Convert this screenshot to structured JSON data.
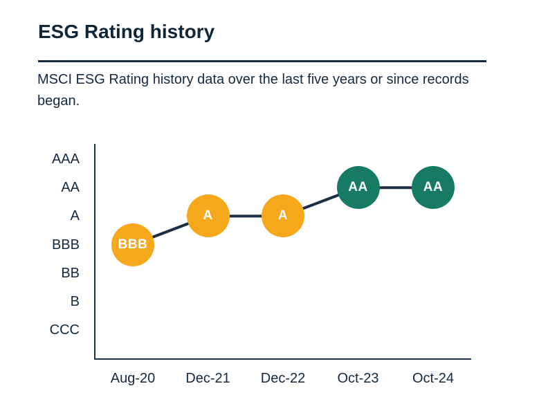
{
  "page": {
    "title": "ESG Rating history",
    "subtitle": "MSCI ESG Rating history data over the last five years or since records began."
  },
  "colors": {
    "navy_text": "#14293e",
    "title_navy": "#0f2638",
    "line_navy": "#1b2e44",
    "axis_navy": "#1c3146",
    "yellow": "#f5a81c",
    "teal": "#177a64",
    "marker_text": "#ffffff",
    "background": "#ffffff"
  },
  "chart_data": {
    "type": "line",
    "title": "ESG Rating history",
    "subtitle": "MSCI ESG Rating history data over the last five years or since records began.",
    "x_categories": [
      "Aug-20",
      "Dec-21",
      "Dec-22",
      "Oct-23",
      "Oct-24"
    ],
    "y_categories_top_to_bottom": [
      "AAA",
      "AA",
      "A",
      "BBB",
      "BB",
      "B",
      "CCC"
    ],
    "points": [
      {
        "x": "Aug-20",
        "rating": "BBB",
        "color_key": "yellow"
      },
      {
        "x": "Dec-21",
        "rating": "A",
        "color_key": "yellow"
      },
      {
        "x": "Dec-22",
        "rating": "A",
        "color_key": "yellow"
      },
      {
        "x": "Oct-23",
        "rating": "AA",
        "color_key": "teal"
      },
      {
        "x": "Oct-24",
        "rating": "AA",
        "color_key": "teal"
      }
    ],
    "legend": "none",
    "grid": false,
    "marker_style": "labeled-circle"
  }
}
